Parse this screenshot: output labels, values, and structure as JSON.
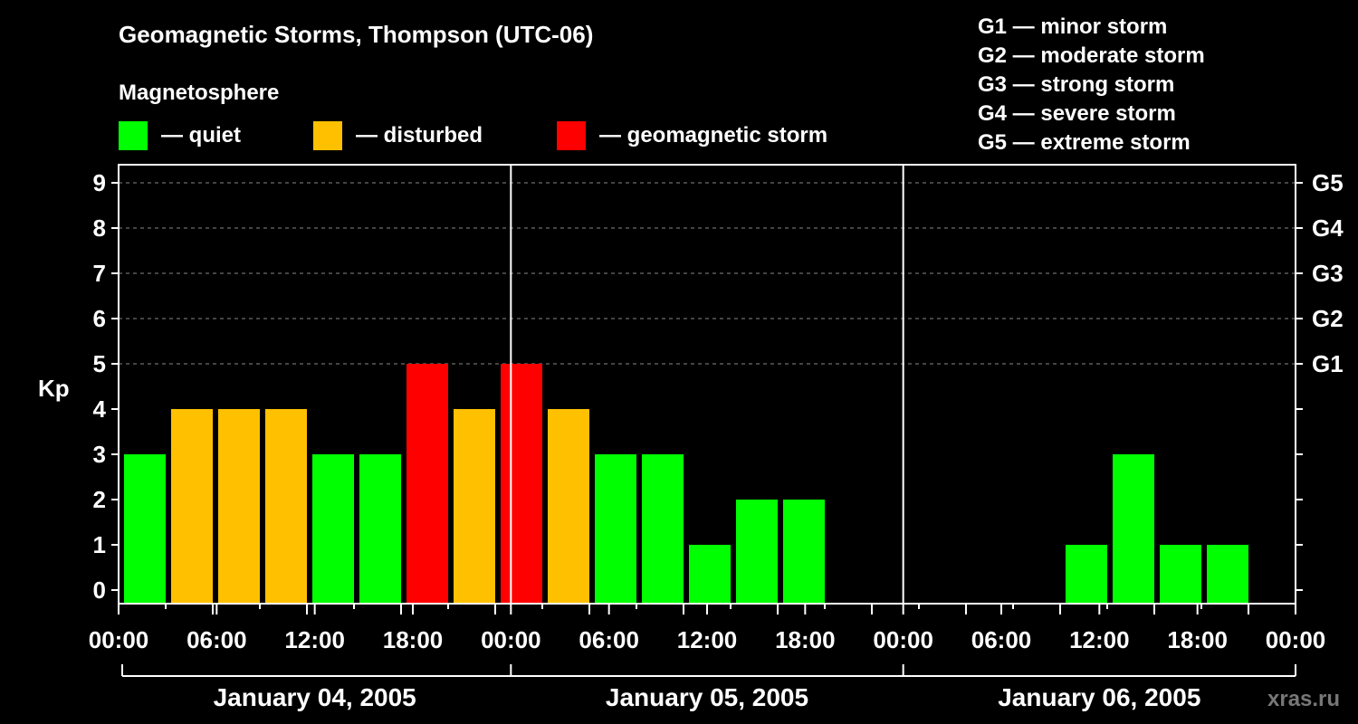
{
  "chart_data": {
    "type": "bar",
    "title": "Geomagnetic Storms, Thompson (UTC-06)",
    "legend_title": "Magnetosphere",
    "legend": [
      {
        "label": "— quiet",
        "color": "#00ff00"
      },
      {
        "label": "— disturbed",
        "color": "#ffc000"
      },
      {
        "label": "— geomagnetic storm",
        "color": "#ff0000"
      }
    ],
    "g_scale_legend": [
      "G1 — minor storm",
      "G2 — moderate storm",
      "G3 — strong storm",
      "G4 — severe storm",
      "G5 — extreme storm"
    ],
    "ylabel": "Kp",
    "ylim": [
      0,
      9
    ],
    "y_ticks": [
      "0",
      "1",
      "2",
      "3",
      "4",
      "5",
      "6",
      "7",
      "8",
      "9"
    ],
    "right_ticks": [
      {
        "y": 5,
        "label": "G1"
      },
      {
        "y": 6,
        "label": "G2"
      },
      {
        "y": 7,
        "label": "G3"
      },
      {
        "y": 8,
        "label": "G4"
      },
      {
        "y": 9,
        "label": "G5"
      }
    ],
    "x_ticks": [
      "00:00",
      "06:00",
      "12:00",
      "18:00",
      "00:00",
      "06:00",
      "12:00",
      "18:00",
      "00:00",
      "06:00",
      "12:00",
      "18:00",
      "00:00"
    ],
    "days": [
      "January 04, 2005",
      "January 05, 2005",
      "January 06, 2005"
    ],
    "interval_hours": 3,
    "grid": "dashed, at Kp 5–9",
    "values": [
      3,
      4,
      4,
      4,
      3,
      3,
      5,
      4,
      5,
      4,
      3,
      3,
      1,
      2,
      2,
      null,
      null,
      null,
      null,
      null,
      1,
      3,
      1,
      1,
      null
    ],
    "colors": {
      "quiet": "#00ff00",
      "disturbed": "#ffc000",
      "storm": "#ff0000"
    },
    "watermark": "xras.ru"
  }
}
